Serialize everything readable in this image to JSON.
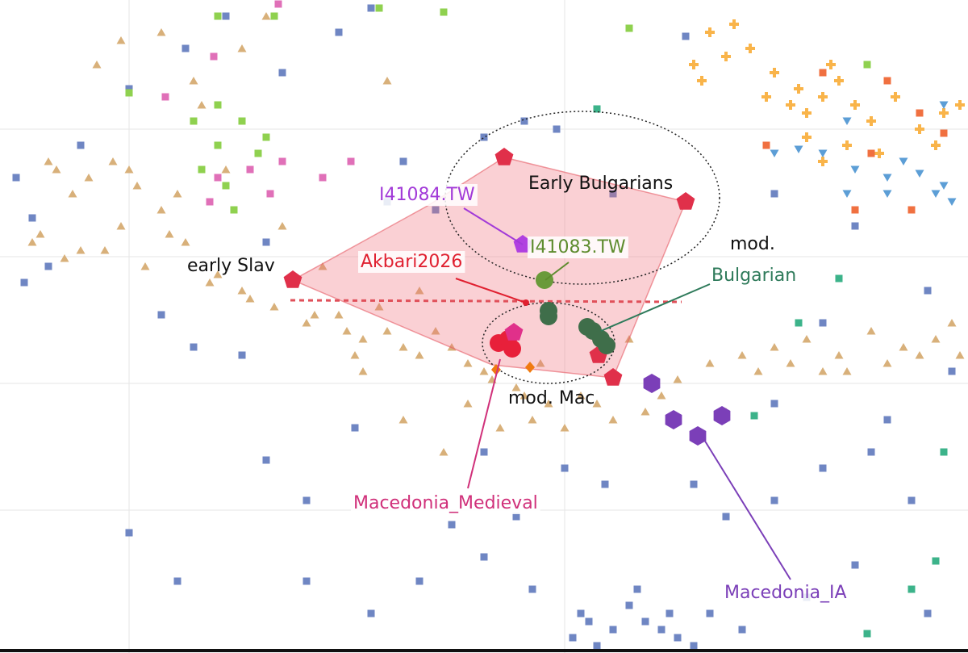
{
  "chart_data": {
    "type": "scatter",
    "xlim": [
      0,
      120
    ],
    "ylim": [
      80.9,
      0
    ],
    "series": [
      {
        "color": "#d8b07a",
        "marker": "triangle",
        "x": [
          7,
          11,
          14,
          17,
          9,
          20,
          4,
          8,
          13,
          18,
          23,
          26,
          30,
          34,
          38,
          42,
          45,
          48,
          52,
          56,
          60,
          64,
          68,
          72,
          76,
          80,
          84,
          88,
          92,
          96,
          100,
          104,
          108,
          112,
          116,
          119,
          25,
          30,
          20,
          33,
          12,
          50,
          55,
          62,
          70,
          45,
          40,
          35,
          28,
          52,
          78,
          86,
          90,
          105,
          48,
          24,
          15,
          5,
          10,
          15,
          21,
          27,
          31,
          36,
          39,
          43,
          47,
          50,
          54,
          58,
          61,
          65,
          67,
          74,
          82,
          94,
          98,
          102,
          110,
          114,
          118,
          6,
          16,
          22,
          44,
          58,
          66
        ],
        "values": [
          21,
          22,
          20,
          23,
          24,
          26,
          30,
          32,
          31,
          33,
          30,
          35,
          36,
          38,
          40,
          39,
          42,
          41,
          44,
          43,
          46,
          48,
          50,
          49,
          52,
          51,
          47,
          45,
          44,
          43,
          42,
          44,
          41,
          43,
          42,
          44,
          13,
          6,
          4,
          2,
          8,
          52,
          56,
          53,
          53,
          46,
          33,
          28,
          21,
          36,
          42,
          54,
          51,
          46,
          10,
          10,
          5,
          29,
          31,
          28,
          29,
          34,
          37,
          35,
          39,
          41,
          38,
          43,
          41,
          45,
          47,
          49,
          45,
          50,
          49,
          46,
          45,
          46,
          45,
          44,
          40,
          20,
          21,
          24,
          44,
          50,
          52
        ]
      },
      {
        "color": "#6f86c3",
        "marker": "square",
        "x": [
          2,
          4,
          6,
          3,
          10,
          16,
          23,
          28,
          35,
          42,
          46,
          50,
          54,
          60,
          65,
          69,
          76,
          85,
          96,
          106,
          115,
          118,
          108,
          102,
          113,
          96,
          90,
          86,
          75,
          70,
          64,
          56,
          60,
          52,
          46,
          66,
          72,
          76,
          80,
          84,
          88,
          92,
          100,
          106,
          115,
          33,
          38,
          44,
          30,
          24,
          20,
          16,
          22,
          38,
          48,
          33,
          60,
          102,
          96,
          110,
          71,
          73,
          78,
          82,
          86,
          74,
          79,
          83
        ],
        "values": [
          22,
          27,
          33,
          35,
          18,
          11,
          6,
          2,
          9,
          4,
          1,
          20,
          26,
          17,
          15,
          16,
          24,
          4.5,
          24,
          28,
          36,
          46,
          56,
          58,
          62,
          62,
          64,
          60,
          60,
          58,
          64,
          65,
          69,
          72,
          76,
          73,
          76,
          78,
          77,
          79,
          76,
          78,
          74,
          70,
          76,
          57,
          62,
          53,
          44,
          43,
          39,
          66,
          72,
          72,
          25,
          30,
          56,
          40,
          50,
          52,
          79,
          77,
          75,
          78,
          80,
          80,
          73,
          76
        ]
      },
      {
        "color": "#f9b44a",
        "marker": "cross",
        "x": [
          86,
          88,
          90,
          93,
          96,
          99,
          100,
          102,
          104,
          106,
          108,
          100,
          98,
          105,
          111,
          114,
          117,
          119,
          95,
          103,
          91,
          102,
          109,
          116,
          87
        ],
        "values": [
          8,
          4,
          7,
          6,
          9,
          11,
          14,
          12,
          10,
          13,
          15,
          17,
          13,
          18,
          12,
          16,
          14,
          13,
          12,
          8,
          3,
          20,
          19,
          18,
          10
        ]
      },
      {
        "color": "#8fd14f",
        "marker": "square",
        "x": [
          27,
          34,
          47,
          55,
          78,
          16,
          24,
          27,
          30,
          32,
          25,
          28,
          29,
          33,
          107.5,
          27
        ],
        "values": [
          2,
          2,
          1,
          1.5,
          3.5,
          11.5,
          15,
          18,
          15,
          19,
          21,
          23,
          26,
          17,
          8,
          13
        ]
      },
      {
        "color": "#e070b8",
        "marker": "square",
        "x": [
          34.5,
          26.5,
          20.5,
          27,
          31,
          35,
          26,
          33.5,
          43.5,
          40
        ],
        "values": [
          0.5,
          7,
          12,
          22,
          21,
          20,
          25,
          24,
          20,
          22
        ]
      },
      {
        "color": "#5c9ed6",
        "marker": "triangle-down",
        "x": [
          105,
          102,
          106,
          110,
          114,
          117,
          99,
          105,
          117,
          118,
          116,
          96,
          110,
          112
        ],
        "values": [
          15,
          19,
          21,
          22,
          21.5,
          23,
          18.5,
          24,
          13,
          25,
          24,
          19,
          24,
          20
        ]
      },
      {
        "color": "#f07040",
        "marker": "square",
        "x": [
          95,
          102,
          106,
          113,
          117,
          114,
          110,
          108
        ],
        "values": [
          18,
          9,
          26,
          26,
          16.5,
          14,
          10,
          19
        ]
      },
      {
        "color": "#3cb38a",
        "marker": "square",
        "x": [
          74,
          104,
          99,
          93.5,
          117,
          116,
          113,
          107.5
        ],
        "values": [
          13.5,
          34.5,
          40,
          51.5,
          56,
          69.5,
          73,
          78.5
        ]
      },
      {
        "color": "#e0304a",
        "marker": "pentagon",
        "x": [
          62.5,
          85,
          36.3,
          74.2,
          76
        ],
        "values": [
          19.5,
          25,
          34.7,
          44,
          46.8
        ]
      },
      {
        "color": "#3f6e4a",
        "marker": "circle",
        "x": [
          68,
          68,
          73.5,
          74.5,
          75.2,
          72.8
        ],
        "values": [
          38.5,
          39.2,
          41,
          42,
          42.8,
          40.5
        ]
      },
      {
        "color": "#e8203a",
        "marker": "circle",
        "x": [
          61.8,
          63.5,
          63
        ],
        "values": [
          42.5,
          43.2,
          42
        ]
      },
      {
        "color": "#e0308a",
        "marker": "pentagon",
        "x": [
          63.7
        ],
        "values": [
          41.2
        ]
      },
      {
        "color": "#7b3fb8",
        "marker": "hexagon",
        "x": [
          80.8,
          83.5,
          86.5,
          89.5
        ],
        "values": [
          47.5,
          52,
          54,
          51.5
        ]
      },
      {
        "color": "#f07a10",
        "marker": "diamond",
        "x": [
          61.5,
          65.7
        ],
        "values": [
          45.8,
          45.5
        ]
      },
      {
        "color": "#b040e0",
        "marker": "pentagon",
        "x": [
          64.8
        ],
        "values": [
          30.3
        ]
      },
      {
        "color": "#6a9a3a",
        "marker": "circle",
        "x": [
          67.5
        ],
        "values": [
          34.7
        ]
      },
      {
        "color": "#e02030",
        "marker": "dot",
        "x": [
          65.2
        ],
        "values": [
          37.5
        ]
      }
    ],
    "annotations": [
      {
        "text": "Early Bulgarians",
        "color": "#111111"
      },
      {
        "text": "I41084.TW",
        "color": "#a23ad8"
      },
      {
        "text": "I41083.TW",
        "color": "#5e8c2e"
      },
      {
        "text": "mod.",
        "color": "#111111"
      },
      {
        "text": "Bulgarian",
        "color": "#2e7a5a"
      },
      {
        "text": "early Slav",
        "color": "#111111"
      },
      {
        "text": "Akbari2026",
        "color": "#e02030"
      },
      {
        "text": "mod. Mac",
        "color": "#111111"
      },
      {
        "text": "Macedonia_Medieval",
        "color": "#d0307a"
      },
      {
        "text": "Macedonia_IA",
        "color": "#7b3fb8"
      }
    ]
  }
}
